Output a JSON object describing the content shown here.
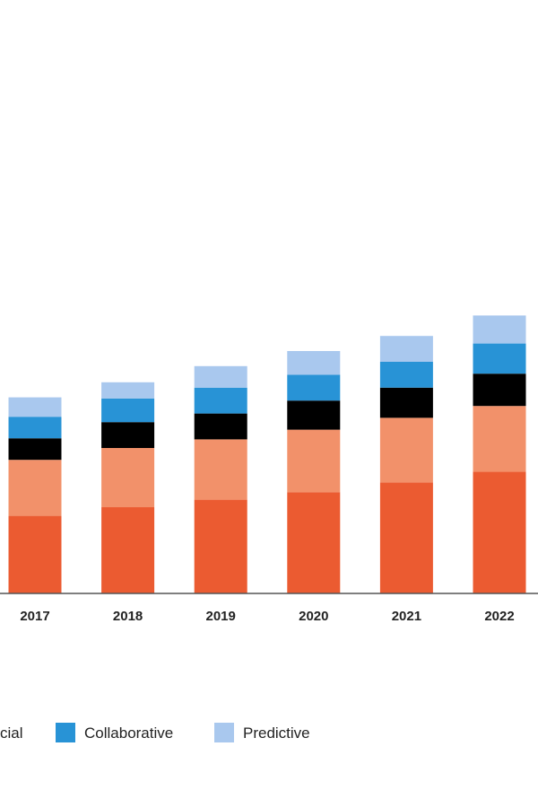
{
  "chart_data": {
    "type": "bar",
    "stacked": true,
    "categories": [
      "2017",
      "2018",
      "2019",
      "2020",
      "2021",
      "2022"
    ],
    "series": [
      {
        "name": "",
        "color": "#eb5b31",
        "values": [
          36,
          40,
          43.5,
          47,
          51.5,
          56.5
        ]
      },
      {
        "name": "",
        "color": "#f2916a",
        "values": [
          26,
          27.5,
          28,
          29,
          30,
          30.5
        ]
      },
      {
        "name": "",
        "color": "#000000",
        "values": [
          10,
          12,
          12,
          13.5,
          14,
          15
        ]
      },
      {
        "name": "Collaborative",
        "color": "#2893d6",
        "values": [
          10,
          11,
          12,
          12,
          12,
          14
        ]
      },
      {
        "name": "Predictive",
        "color": "#a9c8ee",
        "values": [
          9,
          7.5,
          10,
          11,
          12,
          13
        ]
      }
    ],
    "ylim": [
      0,
      130
    ],
    "grid": false,
    "legend_position": "bottom",
    "legend_visible": [
      {
        "text": "cial",
        "series_index": 2,
        "show_swatch": false
      },
      {
        "text": "Collaborative",
        "series_index": 3,
        "show_swatch": true
      },
      {
        "text": "Predictive",
        "series_index": 4,
        "show_swatch": true
      }
    ]
  }
}
